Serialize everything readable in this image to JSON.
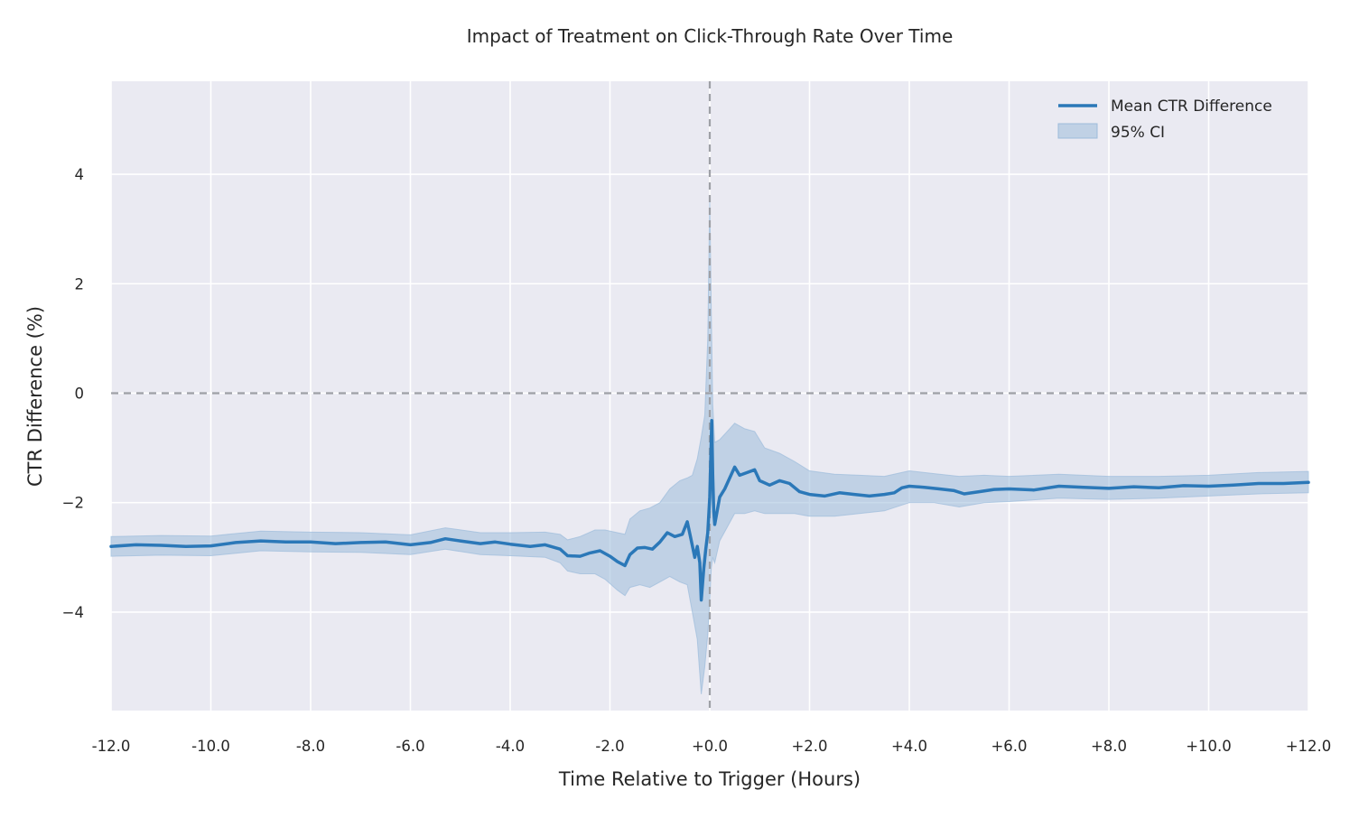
{
  "chart_data": {
    "type": "line",
    "title": "Impact of Treatment on Click-Through Rate Over Time",
    "xlabel": "Time Relative to Trigger (Hours)",
    "ylabel": "CTR Difference (%)",
    "xlim": [
      -12,
      12
    ],
    "ylim": [
      -5.8,
      5.7
    ],
    "x_ticks": [
      -12,
      -10,
      -8,
      -6,
      -4,
      -2,
      0,
      2,
      4,
      6,
      8,
      10,
      12
    ],
    "x_tick_labels": [
      "-12.0",
      "-10.0",
      "-8.0",
      "-6.0",
      "-4.0",
      "-2.0",
      "+0.0",
      "+2.0",
      "+4.0",
      "+6.0",
      "+8.0",
      "+10.0",
      "+12.0"
    ],
    "y_ticks": [
      -4,
      -2,
      0,
      2,
      4
    ],
    "y_tick_labels": [
      "−4",
      "−2",
      "0",
      "2",
      "4"
    ],
    "grid": true,
    "legend_position": "top-right",
    "reference_lines": [
      {
        "axis": "y",
        "value": 0,
        "style": "dashed"
      },
      {
        "axis": "x",
        "value": 0,
        "style": "dashed"
      }
    ],
    "colors": {
      "line": "#2b78b8",
      "band": "#9dbcdb",
      "plot_bg": "#eaeaf2",
      "grid": "#ffffff",
      "reference": "#9ea0a6"
    },
    "series": [
      {
        "name": "Mean CTR Difference",
        "kind": "line",
        "points": [
          [
            -12.0,
            -2.8
          ],
          [
            -11.5,
            -2.77
          ],
          [
            -11.0,
            -2.78
          ],
          [
            -10.5,
            -2.8
          ],
          [
            -10.0,
            -2.79
          ],
          [
            -9.5,
            -2.73
          ],
          [
            -9.0,
            -2.7
          ],
          [
            -8.5,
            -2.72
          ],
          [
            -8.0,
            -2.72
          ],
          [
            -7.5,
            -2.75
          ],
          [
            -7.0,
            -2.73
          ],
          [
            -6.5,
            -2.72
          ],
          [
            -6.0,
            -2.77
          ],
          [
            -5.6,
            -2.73
          ],
          [
            -5.3,
            -2.66
          ],
          [
            -5.0,
            -2.7
          ],
          [
            -4.6,
            -2.75
          ],
          [
            -4.3,
            -2.72
          ],
          [
            -4.0,
            -2.76
          ],
          [
            -3.6,
            -2.8
          ],
          [
            -3.3,
            -2.77
          ],
          [
            -3.0,
            -2.85
          ],
          [
            -2.85,
            -2.97
          ],
          [
            -2.6,
            -2.98
          ],
          [
            -2.4,
            -2.92
          ],
          [
            -2.2,
            -2.88
          ],
          [
            -2.0,
            -2.98
          ],
          [
            -1.85,
            -3.08
          ],
          [
            -1.7,
            -3.15
          ],
          [
            -1.6,
            -2.95
          ],
          [
            -1.45,
            -2.83
          ],
          [
            -1.3,
            -2.82
          ],
          [
            -1.15,
            -2.85
          ],
          [
            -1.0,
            -2.72
          ],
          [
            -0.85,
            -2.55
          ],
          [
            -0.7,
            -2.62
          ],
          [
            -0.55,
            -2.58
          ],
          [
            -0.45,
            -2.35
          ],
          [
            -0.38,
            -2.65
          ],
          [
            -0.3,
            -3.0
          ],
          [
            -0.25,
            -2.8
          ],
          [
            -0.2,
            -3.1
          ],
          [
            -0.17,
            -3.78
          ],
          [
            -0.12,
            -3.2
          ],
          [
            -0.08,
            -2.85
          ],
          [
            -0.04,
            -2.55
          ],
          [
            0.0,
            -1.9
          ],
          [
            0.02,
            -1.2
          ],
          [
            0.04,
            -0.5
          ],
          [
            0.06,
            -1.5
          ],
          [
            0.08,
            -2.15
          ],
          [
            0.1,
            -2.4
          ],
          [
            0.14,
            -2.2
          ],
          [
            0.2,
            -1.9
          ],
          [
            0.3,
            -1.75
          ],
          [
            0.4,
            -1.55
          ],
          [
            0.5,
            -1.35
          ],
          [
            0.6,
            -1.5
          ],
          [
            0.75,
            -1.45
          ],
          [
            0.9,
            -1.4
          ],
          [
            1.0,
            -1.6
          ],
          [
            1.2,
            -1.68
          ],
          [
            1.4,
            -1.6
          ],
          [
            1.6,
            -1.65
          ],
          [
            1.8,
            -1.8
          ],
          [
            2.0,
            -1.85
          ],
          [
            2.3,
            -1.88
          ],
          [
            2.6,
            -1.82
          ],
          [
            2.9,
            -1.85
          ],
          [
            3.2,
            -1.88
          ],
          [
            3.5,
            -1.85
          ],
          [
            3.7,
            -1.82
          ],
          [
            3.85,
            -1.73
          ],
          [
            4.0,
            -1.7
          ],
          [
            4.3,
            -1.72
          ],
          [
            4.6,
            -1.75
          ],
          [
            4.9,
            -1.78
          ],
          [
            5.1,
            -1.84
          ],
          [
            5.4,
            -1.8
          ],
          [
            5.7,
            -1.76
          ],
          [
            6.0,
            -1.75
          ],
          [
            6.5,
            -1.77
          ],
          [
            7.0,
            -1.7
          ],
          [
            7.5,
            -1.72
          ],
          [
            8.0,
            -1.74
          ],
          [
            8.5,
            -1.71
          ],
          [
            9.0,
            -1.73
          ],
          [
            9.5,
            -1.69
          ],
          [
            10.0,
            -1.7
          ],
          [
            10.5,
            -1.68
          ],
          [
            11.0,
            -1.65
          ],
          [
            11.5,
            -1.65
          ],
          [
            12.0,
            -1.63
          ]
        ]
      },
      {
        "name": "95% CI",
        "kind": "band",
        "points": [
          [
            -12.0,
            -2.98,
            -2.62
          ],
          [
            -11.0,
            -2.96,
            -2.6
          ],
          [
            -10.0,
            -2.97,
            -2.61
          ],
          [
            -9.0,
            -2.88,
            -2.52
          ],
          [
            -8.0,
            -2.9,
            -2.54
          ],
          [
            -7.0,
            -2.91,
            -2.55
          ],
          [
            -6.0,
            -2.95,
            -2.59
          ],
          [
            -5.3,
            -2.85,
            -2.46
          ],
          [
            -4.6,
            -2.95,
            -2.55
          ],
          [
            -4.0,
            -2.97,
            -2.55
          ],
          [
            -3.3,
            -3.0,
            -2.54
          ],
          [
            -3.0,
            -3.1,
            -2.58
          ],
          [
            -2.85,
            -3.25,
            -2.68
          ],
          [
            -2.6,
            -3.3,
            -2.62
          ],
          [
            -2.3,
            -3.3,
            -2.5
          ],
          [
            -2.1,
            -3.4,
            -2.5
          ],
          [
            -1.85,
            -3.6,
            -2.55
          ],
          [
            -1.7,
            -3.7,
            -2.58
          ],
          [
            -1.6,
            -3.55,
            -2.3
          ],
          [
            -1.4,
            -3.5,
            -2.15
          ],
          [
            -1.2,
            -3.55,
            -2.1
          ],
          [
            -1.0,
            -3.45,
            -2.0
          ],
          [
            -0.8,
            -3.35,
            -1.75
          ],
          [
            -0.6,
            -3.45,
            -1.6
          ],
          [
            -0.45,
            -3.5,
            -1.55
          ],
          [
            -0.35,
            -4.0,
            -1.5
          ],
          [
            -0.25,
            -4.5,
            -1.2
          ],
          [
            -0.17,
            -5.5,
            -0.8
          ],
          [
            -0.1,
            -5.0,
            -0.4
          ],
          [
            -0.04,
            -4.4,
            1.0
          ],
          [
            0.0,
            -3.8,
            3.6
          ],
          [
            0.03,
            -3.2,
            1.5
          ],
          [
            0.06,
            -3.0,
            -0.2
          ],
          [
            0.1,
            -3.1,
            -0.9
          ],
          [
            0.2,
            -2.7,
            -0.85
          ],
          [
            0.35,
            -2.45,
            -0.7
          ],
          [
            0.5,
            -2.2,
            -0.55
          ],
          [
            0.7,
            -2.2,
            -0.65
          ],
          [
            0.9,
            -2.15,
            -0.7
          ],
          [
            1.1,
            -2.2,
            -1.0
          ],
          [
            1.4,
            -2.2,
            -1.1
          ],
          [
            1.7,
            -2.2,
            -1.25
          ],
          [
            2.0,
            -2.25,
            -1.42
          ],
          [
            2.5,
            -2.25,
            -1.48
          ],
          [
            3.0,
            -2.2,
            -1.5
          ],
          [
            3.5,
            -2.15,
            -1.52
          ],
          [
            4.0,
            -2.0,
            -1.42
          ],
          [
            4.5,
            -2.0,
            -1.47
          ],
          [
            5.0,
            -2.08,
            -1.52
          ],
          [
            5.5,
            -2.0,
            -1.5
          ],
          [
            6.0,
            -1.98,
            -1.52
          ],
          [
            7.0,
            -1.92,
            -1.48
          ],
          [
            8.0,
            -1.94,
            -1.52
          ],
          [
            9.0,
            -1.92,
            -1.52
          ],
          [
            10.0,
            -1.88,
            -1.5
          ],
          [
            11.0,
            -1.84,
            -1.45
          ],
          [
            12.0,
            -1.82,
            -1.43
          ]
        ]
      }
    ]
  }
}
